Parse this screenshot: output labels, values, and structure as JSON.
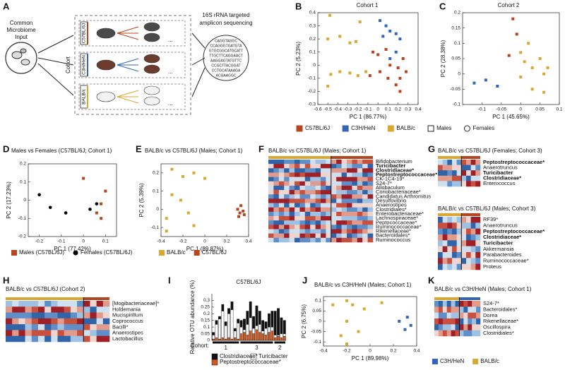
{
  "panel_labels": [
    "A",
    "B",
    "C",
    "D",
    "E",
    "F",
    "G",
    "H",
    "I",
    "J",
    "K"
  ],
  "diagram": {
    "input_label": [
      "Common",
      "Microbiome",
      "Input"
    ],
    "cohort_label": "Cohort",
    "strains": [
      {
        "name": "C57BL/6J",
        "color": "#b5451f",
        "mouse": "#4a4a4a"
      },
      {
        "name": "C3H/HeN",
        "color": "#3465b6",
        "mouse": "#6b3b2e"
      },
      {
        "name": "BALB/c",
        "color": "#d9a732",
        "mouse": "#f2f2f2"
      }
    ],
    "sequencing_label": [
      "16S rRNA targeted",
      "amplicon sequencing"
    ],
    "sequences": [
      "CAGGTAGGC",
      "CCAGGGTGATGTA",
      "GTGCGGCATGCATT",
      "TTGCTTCAGGAACT",
      "AAGGAGTATGTTC",
      "CCGCTTACGGAT",
      "CCTGCATAAAGA",
      "ACGAAGGC"
    ],
    "ellipsis": "..."
  },
  "shared_legend": [
    {
      "name": "C57BL/6J",
      "color": "#b5451f",
      "marker": "square"
    },
    {
      "name": "C3H/HeN",
      "color": "#3465b6",
      "marker": "square"
    },
    {
      "name": "BALB/c",
      "color": "#d9a732",
      "marker": "square"
    },
    {
      "name": "Males",
      "color": "#ffffff",
      "marker": "square"
    },
    {
      "name": "Females",
      "color": "#ffffff",
      "marker": "circle"
    }
  ],
  "chart_data": [
    {
      "type": "scatter",
      "title": "Cohort 1",
      "x_label": "PC 1 (86.77%)",
      "y_label": "PC 2 (5.23%)",
      "xlim": [
        -0.6,
        0.4
      ],
      "xticks": [
        -0.6,
        -0.5,
        -0.4,
        -0.3,
        -0.2,
        -0.1,
        0,
        0.1,
        0.2,
        0.3,
        0.4
      ],
      "ylim": [
        -0.3,
        0.4
      ],
      "yticks": [
        -0.3,
        -0.2,
        -0.1,
        0,
        0.1,
        0.2,
        0.3,
        0.4
      ],
      "legend": false,
      "series": [
        {
          "name": "BALB/c",
          "color": "#d9a732",
          "marker": "square",
          "x": [
            -0.48,
            -0.38,
            -0.18,
            -0.28,
            -0.5,
            -0.22,
            -0.38,
            -0.47,
            -0.5,
            -0.28,
            -0.2,
            -0.12
          ],
          "y": [
            0.38,
            0.22,
            0.33,
            0.17,
            0.2,
            0.18,
            -0.05,
            -0.07,
            -0.16,
            -0.06,
            -0.08,
            -0.05
          ]
        },
        {
          "name": "C3H/HeN",
          "color": "#3465b6",
          "marker": "square",
          "x": [
            0.02,
            0.08,
            0.12,
            0.05,
            0.18,
            0.22,
            0.18,
            0.12
          ],
          "y": [
            0.34,
            0.3,
            0.26,
            0.22,
            0.24,
            0.2,
            0.1,
            0.05
          ]
        },
        {
          "name": "C57BL/6J",
          "color": "#b5451f",
          "marker": "square",
          "x": [
            -0.05,
            0,
            0.08,
            0.12,
            0.2,
            0.25,
            0.28,
            0.22,
            0.18,
            0.02,
            -0.08,
            0.1,
            0.22
          ],
          "y": [
            0.1,
            0.08,
            0.12,
            0,
            -0.02,
            0.05,
            -0.05,
            -0.1,
            -0.15,
            -0.05,
            -0.08,
            -0.1,
            -0.2
          ]
        }
      ]
    },
    {
      "type": "scatter",
      "title": "Cohort 2",
      "x_label": "PC 1 (45.65%)",
      "y_label": "PC 2 (28.38%)",
      "xlim": [
        -0.15,
        0.1
      ],
      "xticks": [
        -0.1,
        -0.05,
        0,
        0.05,
        0.1
      ],
      "ylim": [
        -0.1,
        0.2
      ],
      "yticks": [
        -0.1,
        -0.05,
        0,
        0.05,
        0.1,
        0.15,
        0.2
      ],
      "legend": false,
      "series": [
        {
          "name": "C3H/HeN",
          "color": "#3465b6",
          "marker": "square",
          "x": [
            -0.12,
            -0.09,
            -0.06
          ],
          "y": [
            -0.03,
            -0.02,
            -0.04
          ]
        },
        {
          "name": "C57BL/6J",
          "color": "#b5451f",
          "marker": "square",
          "x": [
            -0.02,
            -0.01,
            -0.03
          ],
          "y": [
            0.18,
            0.13,
            0.06
          ]
        },
        {
          "name": "BALB/c",
          "color": "#d9a732",
          "marker": "square",
          "x": [
            0,
            0.01,
            0.03,
            0,
            0.05,
            0.06,
            0.07,
            0.03,
            0.06,
            0.02
          ],
          "y": [
            0.07,
            0.04,
            0.02,
            -0.01,
            0.05,
            0,
            0.02,
            -0.05,
            -0.06,
            0.1
          ]
        }
      ]
    },
    {
      "type": "scatter",
      "title": "Males vs Females (C57BL/6J; Cohort 1)",
      "x_label": "PC 1 (77.42%)",
      "y_label": "PC 2 (17.23%)",
      "xlim": [
        -0.25,
        0.15
      ],
      "xticks": [
        -0.2,
        -0.1,
        0,
        0.1
      ],
      "ylim": [
        -0.2,
        0.2
      ],
      "yticks": [
        -0.2,
        -0.1,
        0,
        0.1,
        0.2
      ],
      "legend": true,
      "series": [
        {
          "name": "Males (C57BL/6J)",
          "color": "#b5451f",
          "marker": "square",
          "x": [
            0,
            0.1,
            0.08,
            0.06,
            0.08
          ],
          "y": [
            0.12,
            0.05,
            -0.02,
            -0.07,
            -0.1
          ]
        },
        {
          "name": "Females (C57BL/6J)",
          "color": "#000000",
          "marker": "circle",
          "x": [
            -0.2,
            -0.15,
            -0.08,
            0.03,
            0.06
          ],
          "y": [
            0.03,
            -0.04,
            -0.07,
            -0.05,
            -0.02
          ]
        }
      ]
    },
    {
      "type": "scatter",
      "title": "BALB/c vs C57BL/6J (Males; Cohort 1)",
      "x_label": "PC 1 (89.87%)",
      "y_label": "PC 2 (5.39%)",
      "xlim": [
        -0.4,
        0.4
      ],
      "xticks": [
        -0.4,
        -0.2,
        0,
        0.2,
        0.4
      ],
      "ylim": [
        -0.15,
        0.25
      ],
      "yticks": [
        -0.1,
        0,
        0.1,
        0.2
      ],
      "legend": true,
      "series": [
        {
          "name": "BALB/c",
          "color": "#d9a732",
          "marker": "square",
          "x": [
            -0.3,
            -0.2,
            -0.1,
            0,
            -0.3,
            -0.22,
            -0.35,
            -0.15,
            -0.1,
            -0.35
          ],
          "y": [
            0.22,
            0.18,
            0.2,
            0.17,
            0.08,
            0.05,
            -0.05,
            -0.02,
            -0.09,
            -0.12
          ]
        },
        {
          "name": "C57BL/6J",
          "color": "#b5451f",
          "marker": "square",
          "x": [
            0.3,
            0.32,
            0.35,
            0.33,
            0.36,
            0.31
          ],
          "y": [
            0,
            -0.02,
            -0.01,
            0.02,
            -0.03,
            -0.04
          ]
        }
      ]
    },
    {
      "type": "bar",
      "title": "C57BL/6J",
      "y_label": "Relative OTU abundance (%)",
      "group_title": "Cohort:",
      "groups": [
        {
          "label": "1",
          "count": 9
        },
        {
          "label": "3",
          "count": 11
        },
        {
          "label": "2",
          "count": 4
        }
      ],
      "ylim": [
        0,
        0.35
      ],
      "yticks": [
        0,
        0.05,
        0.1,
        0.15,
        0.2,
        0.25,
        0.3
      ],
      "series": [
        {
          "name": "Peptostreptococcaceae*",
          "color": "#d4581e",
          "values": [
            0.01,
            0.02,
            0.01,
            0.02,
            0.01,
            0.02,
            0.01,
            0.02,
            0.01,
            0.05,
            0.06,
            0.04,
            0.07,
            0.05,
            0.08,
            0.06,
            0.05,
            0.04,
            0.06,
            0.07,
            0.02,
            0.03,
            0.02,
            0.03
          ]
        },
        {
          "name": "Turicibacter",
          "color": "#ffffff",
          "values": [
            0.03,
            0.1,
            0.15,
            0.2,
            0.1,
            0.18,
            0.22,
            0.05,
            0.12,
            0.05,
            0.02,
            0.08,
            0.1,
            0.04,
            0.03,
            0.06,
            0.02,
            0.05,
            0.04,
            0.03,
            0.02,
            0.01,
            0.03,
            0.02
          ]
        },
        {
          "name": "Clostridiaceae*",
          "color": "#111111",
          "values": [
            0.02,
            0.03,
            0.02,
            0.05,
            0.03,
            0.04,
            0.06,
            0.02,
            0.03,
            0.05,
            0.08,
            0.1,
            0.12,
            0.09,
            0.15,
            0.1,
            0.08,
            0.05,
            0.1,
            0.12,
            0.18,
            0.2,
            0.12,
            0.1
          ]
        }
      ]
    },
    {
      "type": "scatter",
      "title": "BALB/c vs C3H/HeN (Males; Cohort 1)",
      "x_label": "PC 1 (89.98%)",
      "y_label": "PC 2 (6.75%)",
      "xlim": [
        -0.4,
        0.4
      ],
      "xticks": [
        -0.4,
        -0.2,
        0,
        0.2,
        0.4
      ],
      "ylim": [
        -0.12,
        0.12
      ],
      "yticks": [
        -0.1,
        -0.05,
        0,
        0.05,
        0.1
      ],
      "legend": true,
      "series": [
        {
          "name": "C3H/HeN",
          "color": "#3465b6",
          "marker": "square",
          "x": [
            0.25,
            0.32,
            0.35,
            0.3
          ],
          "y": [
            0,
            0.02,
            -0.02,
            -0.04
          ]
        },
        {
          "name": "BALB/c",
          "color": "#d9a732",
          "marker": "square",
          "x": [
            -0.32,
            -0.2,
            -0.15,
            -0.05,
            0.1,
            -0.2,
            -0.1,
            -0.25,
            -0.2
          ],
          "y": [
            0.08,
            0.1,
            0.08,
            0.06,
            0.09,
            0,
            -0.05,
            -0.07,
            -0.11
          ]
        }
      ]
    }
  ],
  "heatmaps": [
    {
      "title": "BALB/c vs C57BL/6J (Males; Cohort 1)",
      "left_color": "#d9a732",
      "right_color": "#b5451f",
      "rows": [
        {
          "label": "Bifidobacterium"
        },
        {
          "label": "Turicibacter",
          "bold": true
        },
        {
          "label": "Clostridiaceae*",
          "bold": true
        },
        {
          "label": "Peptostreptococcaceae*",
          "bold": true
        },
        {
          "label": "CK-1C4-19*"
        },
        {
          "label": "S24-7*"
        },
        {
          "label": "Allobaculum"
        },
        {
          "label": "Coriobacteriaceae*"
        },
        {
          "label": "Candidatus Arthromitus"
        },
        {
          "label": "Desulfovibrio"
        },
        {
          "label": "Anaerostipes"
        },
        {
          "label": "Clostridiales*"
        },
        {
          "label": "Enterobacteriaceae*"
        },
        {
          "label": "Lachnospiraceae*"
        },
        {
          "label": "Peptococcaceae*"
        },
        {
          "label": "Ruminococcaceae*"
        },
        {
          "label": "Rikenellaceae*"
        },
        {
          "label": "Bacteroidales*"
        },
        {
          "label": "Ruminococcus"
        }
      ]
    },
    {
      "title": "BALB/c vs C57BL/6J (Females; Cohort 3)",
      "left_color": "#d9a732",
      "right_color": "#b5451f",
      "rows": [
        {
          "label": "Peptostreptococcaceae*",
          "bold": true
        },
        {
          "label": "Anaerotruncus"
        },
        {
          "label": "Turicibacter",
          "bold": true
        },
        {
          "label": "Clostridiaceae*",
          "bold": true
        },
        {
          "label": "Enterococcus"
        }
      ]
    },
    {
      "title": "BALB/c vs C57BL/6J (Males; Cohort 3)",
      "left_color": "#d9a732",
      "right_color": "#b5451f",
      "rows": [
        {
          "label": "RF39*"
        },
        {
          "label": "Anaerotruncus"
        },
        {
          "label": "Peptostreptococcaceae*",
          "bold": true
        },
        {
          "label": "Clostridiaceae*",
          "bold": true
        },
        {
          "label": "Turicibacter",
          "bold": true
        },
        {
          "label": "Akkermansia"
        },
        {
          "label": "Parabacteroides"
        },
        {
          "label": "Ruminococcaceae*"
        },
        {
          "label": "Proteus"
        }
      ]
    },
    {
      "title": "BALB/c vs C57BL/6J (Cohort 2)",
      "left_color": "#d9a732",
      "right_color": "#b5451f",
      "rows": [
        {
          "label": "[Mogibacteriaceae]*"
        },
        {
          "label": "Holdemania"
        },
        {
          "label": "Mucispirillum"
        },
        {
          "label": "Coprococcus"
        },
        {
          "label": "Bacilli*"
        },
        {
          "label": "Anaerostipes"
        },
        {
          "label": "Lactobacillus"
        }
      ]
    },
    {
      "title": "BALB/c vs C3H/HeN (Males; Cohort 1)",
      "left_color": "#d9a732",
      "right_color": "#3465b6",
      "rows": [
        {
          "label": "S24-7*"
        },
        {
          "label": "Bacteroidales*"
        },
        {
          "label": "Dorea"
        },
        {
          "label": "Rikenellaceae*"
        },
        {
          "label": "Oscillospira"
        },
        {
          "label": "Clostridiales*"
        }
      ]
    }
  ]
}
